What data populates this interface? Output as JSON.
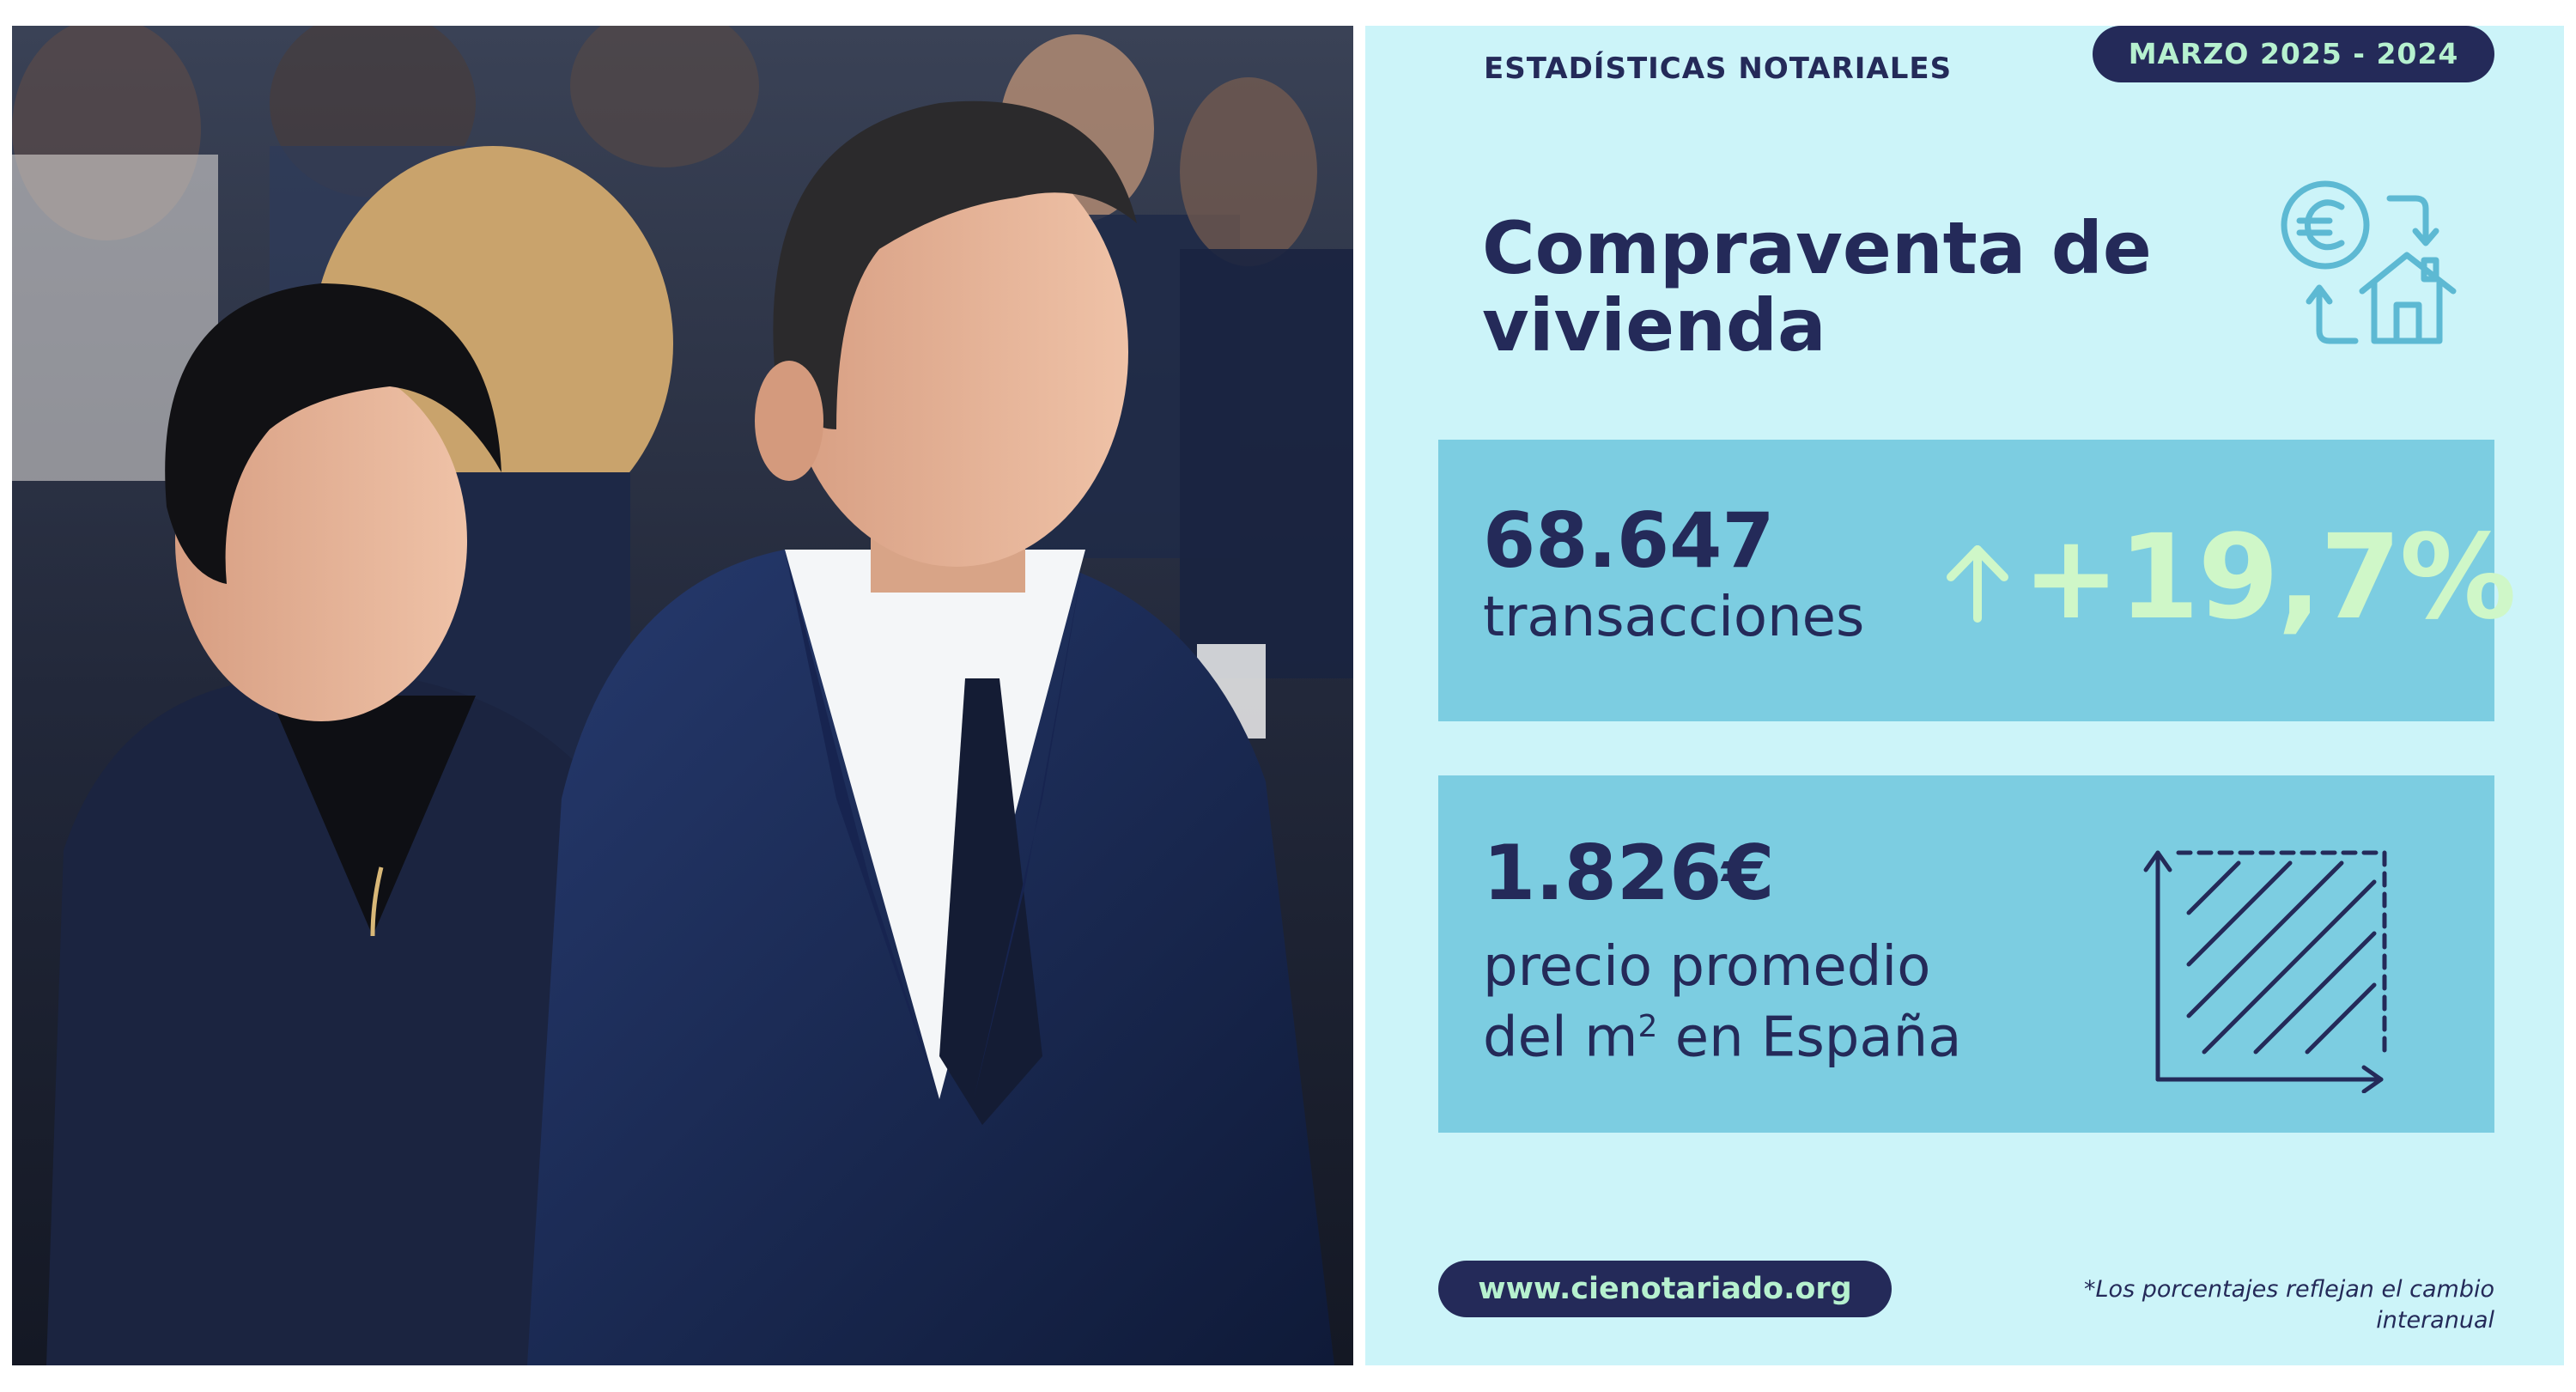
{
  "photo": {
    "description_icon": "photo-of-two-people-seated-at-event"
  },
  "infographic": {
    "header_label": "ESTADÍSTICAS NOTARIALES",
    "date_range": "MARZO 2025 - 2024",
    "title_line1": "Compraventa de",
    "title_line2": "vivienda",
    "icon_title": "euro-house-exchange-icon",
    "transactions": {
      "value": "68.647",
      "label": "transacciones",
      "change": "+19,7%",
      "change_icon": "arrow-up-icon"
    },
    "price": {
      "value": "1.826€",
      "label_line1": "precio promedio",
      "label_line2_pre": "del m",
      "label_sup": "2",
      "label_line2_post": " en España",
      "icon": "square-meter-area-icon"
    },
    "website": "www.cienotariado.org",
    "footnote": "*Los porcentajes reflejan el cambio interanual"
  },
  "colors": {
    "navy": "#242a59",
    "light_bg": "#ccf4f9",
    "box_blue": "#7ccde1",
    "mint": "#cff7c8",
    "pill_text": "#b6f1cf"
  }
}
